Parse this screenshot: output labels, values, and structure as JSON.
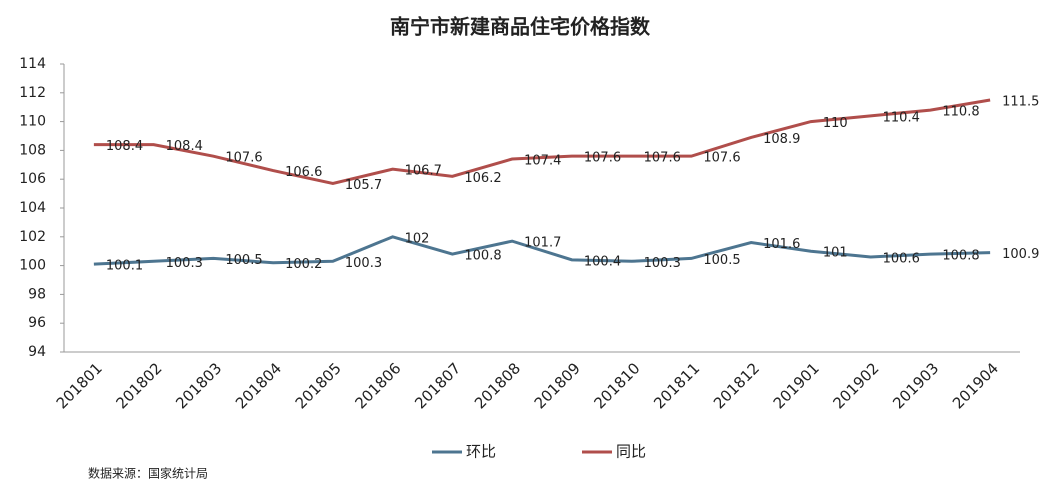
{
  "chart_data": {
    "type": "line",
    "title": "南宁市新建商品住宅价格指数",
    "categories": [
      "201801",
      "201802",
      "201803",
      "201804",
      "201805",
      "201806",
      "201807",
      "201808",
      "201809",
      "201810",
      "201811",
      "201812",
      "201901",
      "201902",
      "201903",
      "201904"
    ],
    "series": [
      {
        "name": "环比",
        "color": "#4d7590",
        "values": [
          100.1,
          100.3,
          100.5,
          100.2,
          100.3,
          102,
          100.8,
          101.7,
          100.4,
          100.3,
          100.5,
          101.6,
          101,
          100.6,
          100.8,
          100.9
        ]
      },
      {
        "name": "同比",
        "color": "#b04e4b",
        "values": [
          108.4,
          108.4,
          107.6,
          106.6,
          105.7,
          106.7,
          106.2,
          107.4,
          107.6,
          107.6,
          107.6,
          108.9,
          110,
          110.4,
          110.8,
          111.5
        ]
      }
    ],
    "ylim": [
      94,
      114
    ],
    "yticks": [
      94,
      96,
      98,
      100,
      102,
      104,
      106,
      108,
      110,
      112,
      114
    ],
    "grid": false,
    "legend": "bottom",
    "source": "数据来源：国家统计局"
  }
}
